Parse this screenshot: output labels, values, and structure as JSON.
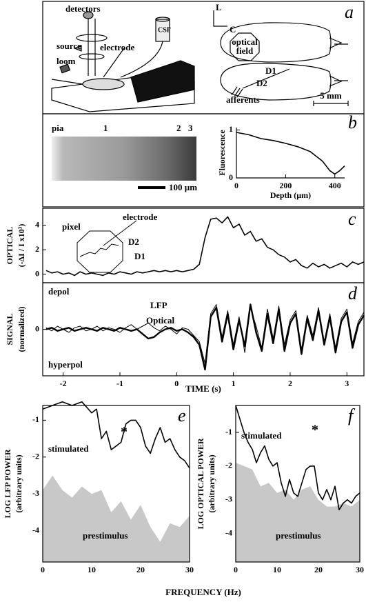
{
  "diagram": {
    "panel_a": {
      "letter": "a",
      "detectors": "detectors",
      "source": "source",
      "electrode": "electrode",
      "csf": "CSF",
      "loom": "loom",
      "lateral": "L",
      "caudal": "C",
      "optical_field": [
        "optical",
        "field"
      ],
      "d1": "D1",
      "d2": "D2",
      "afferents": "afferents",
      "scale": "5 mm"
    },
    "panel_b_image": {
      "pia": "pia",
      "l1": "1",
      "l2": "2",
      "l3": "3",
      "scale": "100 µm"
    }
  },
  "time_label": "TIME (s)",
  "frequency_label": "FREQUENCY (Hz)",
  "chart_data": [
    {
      "type": "line",
      "panel_label": "b",
      "xlabel": "Depth (µm)",
      "ylabel": [
        "Fluorescence"
      ],
      "xlim": [
        0,
        440
      ],
      "xticks": [
        0,
        200,
        400
      ],
      "ylim": [
        0,
        1.05
      ],
      "yticks": [
        0,
        1
      ],
      "x": [
        0,
        50,
        100,
        150,
        200,
        250,
        300,
        350,
        380,
        400,
        420,
        440
      ],
      "series": [
        {
          "color": "#000000",
          "values": [
            0.95,
            0.9,
            0.82,
            0.78,
            0.72,
            0.65,
            0.55,
            0.35,
            0.15,
            0.08,
            0.15,
            0.25
          ]
        }
      ]
    },
    {
      "type": "line",
      "panel_label": "c",
      "ylabel": [
        "OPTICAL",
        "(-ΔI / I x10³)"
      ],
      "xlim": [
        -2.36,
        3.3
      ],
      "ylim": [
        -0.7,
        5.4
      ],
      "yticks": [
        0,
        2,
        4
      ],
      "annotations": [
        "pixel",
        "electrode",
        "D2",
        "D1"
      ],
      "x": [
        -2.3,
        -2.2,
        -2.1,
        -2.0,
        -1.9,
        -1.8,
        -1.7,
        -1.6,
        -1.5,
        -1.4,
        -1.3,
        -1.2,
        -1.1,
        -1.0,
        -0.9,
        -0.8,
        -0.7,
        -0.6,
        -0.5,
        -0.4,
        -0.3,
        -0.2,
        -0.1,
        0.0,
        0.1,
        0.2,
        0.3,
        0.4,
        0.5,
        0.6,
        0.7,
        0.8,
        0.9,
        1.0,
        1.1,
        1.2,
        1.3,
        1.4,
        1.5,
        1.6,
        1.7,
        1.8,
        1.9,
        2.0,
        2.1,
        2.2,
        2.3,
        2.4,
        2.5,
        2.6,
        2.7,
        2.8,
        2.9,
        3.0,
        3.1,
        3.2,
        3.3
      ],
      "series": [
        {
          "color": "#000000",
          "values": [
            0.3,
            0.1,
            0.2,
            0.0,
            0.1,
            -0.1,
            0.2,
            0.0,
            0.1,
            0.0,
            -0.1,
            0.1,
            0.0,
            0.2,
            0.1,
            0.0,
            0.2,
            0.1,
            0.2,
            0.3,
            0.2,
            0.3,
            0.2,
            0.3,
            0.2,
            0.3,
            0.4,
            0.8,
            3.0,
            4.5,
            4.6,
            4.2,
            4.7,
            3.8,
            4.1,
            3.2,
            3.5,
            2.7,
            2.9,
            2.2,
            2.0,
            1.6,
            1.4,
            1.0,
            1.2,
            0.7,
            0.5,
            0.9,
            0.6,
            0.8,
            0.5,
            0.7,
            0.9,
            0.6,
            1.0,
            0.8,
            1.0
          ]
        }
      ]
    },
    {
      "type": "line",
      "panel_label": "d",
      "ylabel": [
        "SIGNAL",
        "(normalized)"
      ],
      "xlim": [
        -2.36,
        3.3
      ],
      "xticks": [
        -2,
        -1,
        0,
        1,
        2,
        3
      ],
      "ylim": [
        -3,
        3
      ],
      "yticks": [
        0
      ],
      "annotations": [
        "depol",
        "hyperpol"
      ],
      "x": [
        -2.3,
        -2.2,
        -2.1,
        -2.0,
        -1.9,
        -1.8,
        -1.7,
        -1.6,
        -1.5,
        -1.4,
        -1.3,
        -1.2,
        -1.1,
        -1.0,
        -0.9,
        -0.8,
        -0.7,
        -0.6,
        -0.5,
        -0.4,
        -0.3,
        -0.2,
        -0.1,
        0.0,
        0.1,
        0.2,
        0.3,
        0.4,
        0.5,
        0.6,
        0.7,
        0.8,
        0.9,
        1.0,
        1.1,
        1.2,
        1.3,
        1.4,
        1.5,
        1.6,
        1.7,
        1.8,
        1.9,
        2.0,
        2.1,
        2.2,
        2.3,
        2.4,
        2.5,
        2.6,
        2.7,
        2.8,
        2.9,
        3.0,
        3.1,
        3.2,
        3.3
      ],
      "series": [
        {
          "name": "LFP",
          "color": "#000000",
          "values": [
            0.1,
            -0.1,
            0.2,
            0,
            -0.2,
            0.1,
            0.2,
            -0.1,
            0,
            0.2,
            -0.1,
            0.1,
            0,
            -0.2,
            0.1,
            0.3,
            0,
            0.2,
            0.4,
            0.1,
            -0.1,
            0.2,
            0,
            -0.3,
            0.1,
            0,
            -0.4,
            -0.8,
            -2.2,
            1.0,
            1.6,
            -0.5,
            1.2,
            -1.0,
            0.8,
            -1.5,
            1.4,
            0.2,
            -1.2,
            1.3,
            -0.6,
            1.5,
            -1.0,
            0.6,
            1.2,
            -1.3,
            0.9,
            -0.4,
            1.4,
            -0.8,
            1.0,
            -1.2,
            0.7,
            1.3,
            -0.9,
            0.5,
            1.1
          ]
        },
        {
          "name": "Optical",
          "color": "#000000",
          "values": [
            0,
            0.1,
            -0.1,
            0,
            0.1,
            -0.1,
            0,
            0.1,
            0,
            -0.1,
            0.1,
            0,
            -0.1,
            0.1,
            0,
            -0.1,
            0,
            -0.3,
            -0.6,
            -0.5,
            -0.2,
            0,
            0.1,
            -0.1,
            0,
            -0.2,
            -0.5,
            -1.0,
            -2.6,
            0.8,
            1.4,
            -0.8,
            1.0,
            -1.3,
            0.6,
            -1.1,
            1.6,
            -0.2,
            -1.4,
            1.0,
            -0.9,
            1.3,
            -1.4,
            0.4,
            1.0,
            -1.6,
            0.7,
            -0.7,
            1.2,
            -1.0,
            0.8,
            -1.5,
            0.5,
            1.1,
            -1.2,
            0.3,
            0.9
          ]
        }
      ]
    },
    {
      "type": "line",
      "panel_label": "e",
      "ylabel": [
        "LOG LFP POWER",
        "(arbitrary units)"
      ],
      "xlim": [
        0,
        30
      ],
      "xticks": [
        0,
        10,
        20,
        30
      ],
      "ylim": [
        -4.85,
        -0.6
      ],
      "yticks": [
        -1,
        -2,
        -3,
        -4
      ],
      "annotations": [
        "*"
      ],
      "series": [
        {
          "name": "prestimulus",
          "style": "area",
          "color": "#c8c8c8",
          "x": [
            0,
            2,
            4,
            6,
            8,
            10,
            12,
            14,
            16,
            18,
            20,
            22,
            24,
            26,
            28,
            30
          ],
          "values": [
            -2.9,
            -2.5,
            -2.9,
            -3.1,
            -2.8,
            -3.0,
            -2.9,
            -3.5,
            -3.2,
            -3.7,
            -3.3,
            -3.9,
            -4.3,
            -3.8,
            -3.9,
            -3.6
          ]
        },
        {
          "name": "stimulated",
          "style": "line",
          "color": "#000000",
          "x": [
            0,
            2,
            4,
            6,
            8,
            10,
            11,
            12,
            13,
            14,
            15,
            16,
            17,
            18,
            19,
            20,
            21,
            22,
            23,
            24,
            25,
            26,
            27,
            28,
            29,
            30
          ],
          "values": [
            -0.7,
            -0.6,
            -0.5,
            -0.6,
            -0.5,
            -0.8,
            -0.7,
            -1.5,
            -1.3,
            -1.8,
            -1.7,
            -1.6,
            -1.1,
            -1.0,
            -1.0,
            -1.2,
            -1.7,
            -1.9,
            -1.5,
            -1.2,
            -1.6,
            -1.5,
            -1.8,
            -2.0,
            -2.1,
            -2.3
          ]
        }
      ]
    },
    {
      "type": "line",
      "panel_label": "f",
      "ylabel": [
        "LOG OPTICAL POWER",
        "(arbitrary units)"
      ],
      "xlim": [
        0,
        30
      ],
      "xticks": [
        0,
        10,
        20,
        30
      ],
      "ylim": [
        -4.85,
        -0.2
      ],
      "yticks": [
        -1,
        -2,
        -3,
        -4
      ],
      "annotations": [
        "*"
      ],
      "series": [
        {
          "name": "prestimulus",
          "style": "area",
          "color": "#c8c8c8",
          "x": [
            0,
            2,
            4,
            6,
            8,
            10,
            12,
            14,
            16,
            18,
            20,
            22,
            24,
            26,
            28,
            30
          ],
          "values": [
            -1.9,
            -2.0,
            -2.1,
            -2.6,
            -2.5,
            -2.8,
            -2.7,
            -3.0,
            -2.7,
            -2.6,
            -3.0,
            -3.2,
            -3.2,
            -3.1,
            -3.2,
            -3.0
          ]
        },
        {
          "name": "stimulated",
          "style": "line",
          "color": "#000000",
          "x": [
            0,
            1,
            2,
            3,
            4,
            5,
            6,
            7,
            8,
            9,
            10,
            11,
            12,
            13,
            14,
            15,
            16,
            17,
            18,
            19,
            20,
            21,
            22,
            23,
            24,
            25,
            26,
            27,
            28,
            29,
            30
          ],
          "values": [
            -0.2,
            -0.6,
            -1.0,
            -1.3,
            -1.5,
            -1.9,
            -1.6,
            -1.4,
            -1.8,
            -2.0,
            -1.9,
            -2.5,
            -2.9,
            -2.4,
            -2.8,
            -2.9,
            -2.5,
            -2.1,
            -2.0,
            -2.0,
            -2.8,
            -3.0,
            -2.7,
            -3.0,
            -2.6,
            -3.3,
            -3.1,
            -3.0,
            -3.1,
            -2.9,
            -2.8
          ]
        }
      ]
    }
  ]
}
